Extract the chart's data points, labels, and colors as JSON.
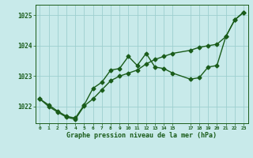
{
  "background_color": "#c8eaea",
  "grid_color": "#9ecfcf",
  "line_color": "#1a5c1a",
  "marker": "D",
  "markersize": 2.5,
  "linewidth": 1.0,
  "xlim": [
    -0.5,
    23.5
  ],
  "ylim": [
    1021.45,
    1025.35
  ],
  "yticks": [
    1022,
    1023,
    1024,
    1025
  ],
  "xticks": [
    0,
    1,
    2,
    3,
    4,
    5,
    6,
    7,
    8,
    9,
    10,
    11,
    12,
    13,
    14,
    15,
    17,
    18,
    19,
    20,
    21,
    22,
    23
  ],
  "xlabel": "Graphe pression niveau de la mer (hPa)",
  "series1": [
    [
      0,
      1022.25
    ],
    [
      1,
      1022.05
    ],
    [
      2,
      1021.85
    ],
    [
      3,
      1021.68
    ],
    [
      4,
      1021.62
    ],
    [
      5,
      1022.05
    ],
    [
      6,
      1022.6
    ],
    [
      7,
      1022.8
    ],
    [
      8,
      1023.2
    ],
    [
      9,
      1023.25
    ],
    [
      10,
      1023.65
    ],
    [
      11,
      1023.35
    ],
    [
      12,
      1023.75
    ],
    [
      13,
      1023.3
    ],
    [
      14,
      1023.25
    ],
    [
      15,
      1023.1
    ],
    [
      17,
      1022.9
    ],
    [
      18,
      1022.95
    ],
    [
      19,
      1023.3
    ],
    [
      20,
      1023.35
    ],
    [
      21,
      1024.3
    ],
    [
      22,
      1024.85
    ],
    [
      23,
      1025.1
    ]
  ],
  "series2": [
    [
      0,
      1022.25
    ],
    [
      1,
      1022.0
    ],
    [
      2,
      1021.82
    ],
    [
      3,
      1021.65
    ],
    [
      4,
      1021.58
    ],
    [
      5,
      1022.02
    ],
    [
      6,
      1022.25
    ],
    [
      7,
      1022.55
    ],
    [
      8,
      1022.85
    ],
    [
      9,
      1023.0
    ],
    [
      10,
      1023.1
    ],
    [
      11,
      1023.2
    ],
    [
      12,
      1023.4
    ],
    [
      13,
      1023.55
    ],
    [
      14,
      1023.65
    ],
    [
      15,
      1023.75
    ],
    [
      17,
      1023.85
    ],
    [
      18,
      1023.95
    ],
    [
      19,
      1024.0
    ],
    [
      20,
      1024.05
    ],
    [
      21,
      1024.3
    ],
    [
      22,
      1024.85
    ],
    [
      23,
      1025.1
    ]
  ]
}
